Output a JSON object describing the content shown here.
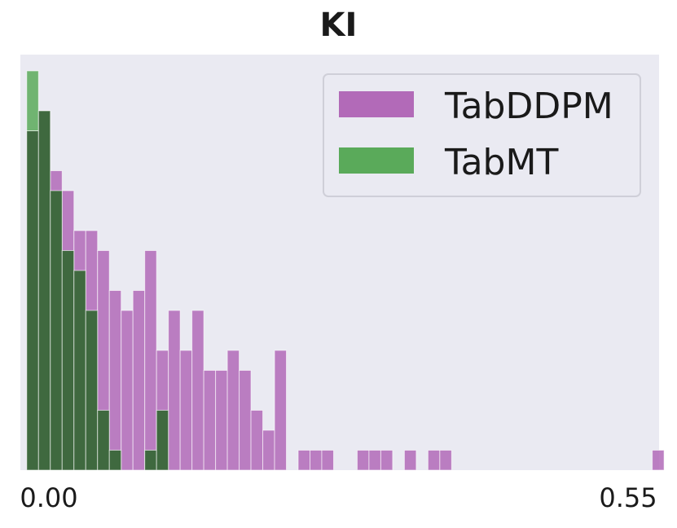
{
  "chart_data": {
    "type": "bar",
    "title": "KI",
    "xlabel": "",
    "ylabel": "",
    "xlim": [
      -0.0055,
      0.5465
    ],
    "x_ticks": [
      "0.00",
      "0.55"
    ],
    "bin_start": 0.0,
    "bin_width": 0.0102,
    "ylim": [
      0,
      20
    ],
    "grid": false,
    "legend_position": "top-right",
    "series": [
      {
        "name": "TabDDPM",
        "color": "#b26ab8",
        "values": [
          17,
          18,
          15,
          14,
          12,
          12,
          11,
          9,
          8,
          9,
          11,
          6,
          8,
          6,
          8,
          5,
          5,
          6,
          5,
          3,
          2,
          6,
          0,
          1,
          1,
          1,
          0,
          0,
          1,
          1,
          1,
          0,
          1,
          0,
          1,
          1,
          0,
          0,
          0,
          0,
          0,
          0,
          0,
          0,
          0,
          0,
          0,
          0,
          0,
          0,
          0,
          0,
          0,
          1
        ]
      },
      {
        "name": "TabMT",
        "color": "#5aaa5a",
        "values": [
          20,
          18,
          14,
          11,
          10,
          8,
          3,
          1,
          0,
          0,
          1,
          3
        ]
      }
    ]
  },
  "legend": {
    "tabddpm_label": "TabDDPM",
    "tabmt_label": "TabMT"
  },
  "colors": {
    "plot_background": "#eaeaf2",
    "tabddpm": "#b26ab8",
    "tabmt": "#5aaa5a",
    "overlap": "#3f693f"
  }
}
